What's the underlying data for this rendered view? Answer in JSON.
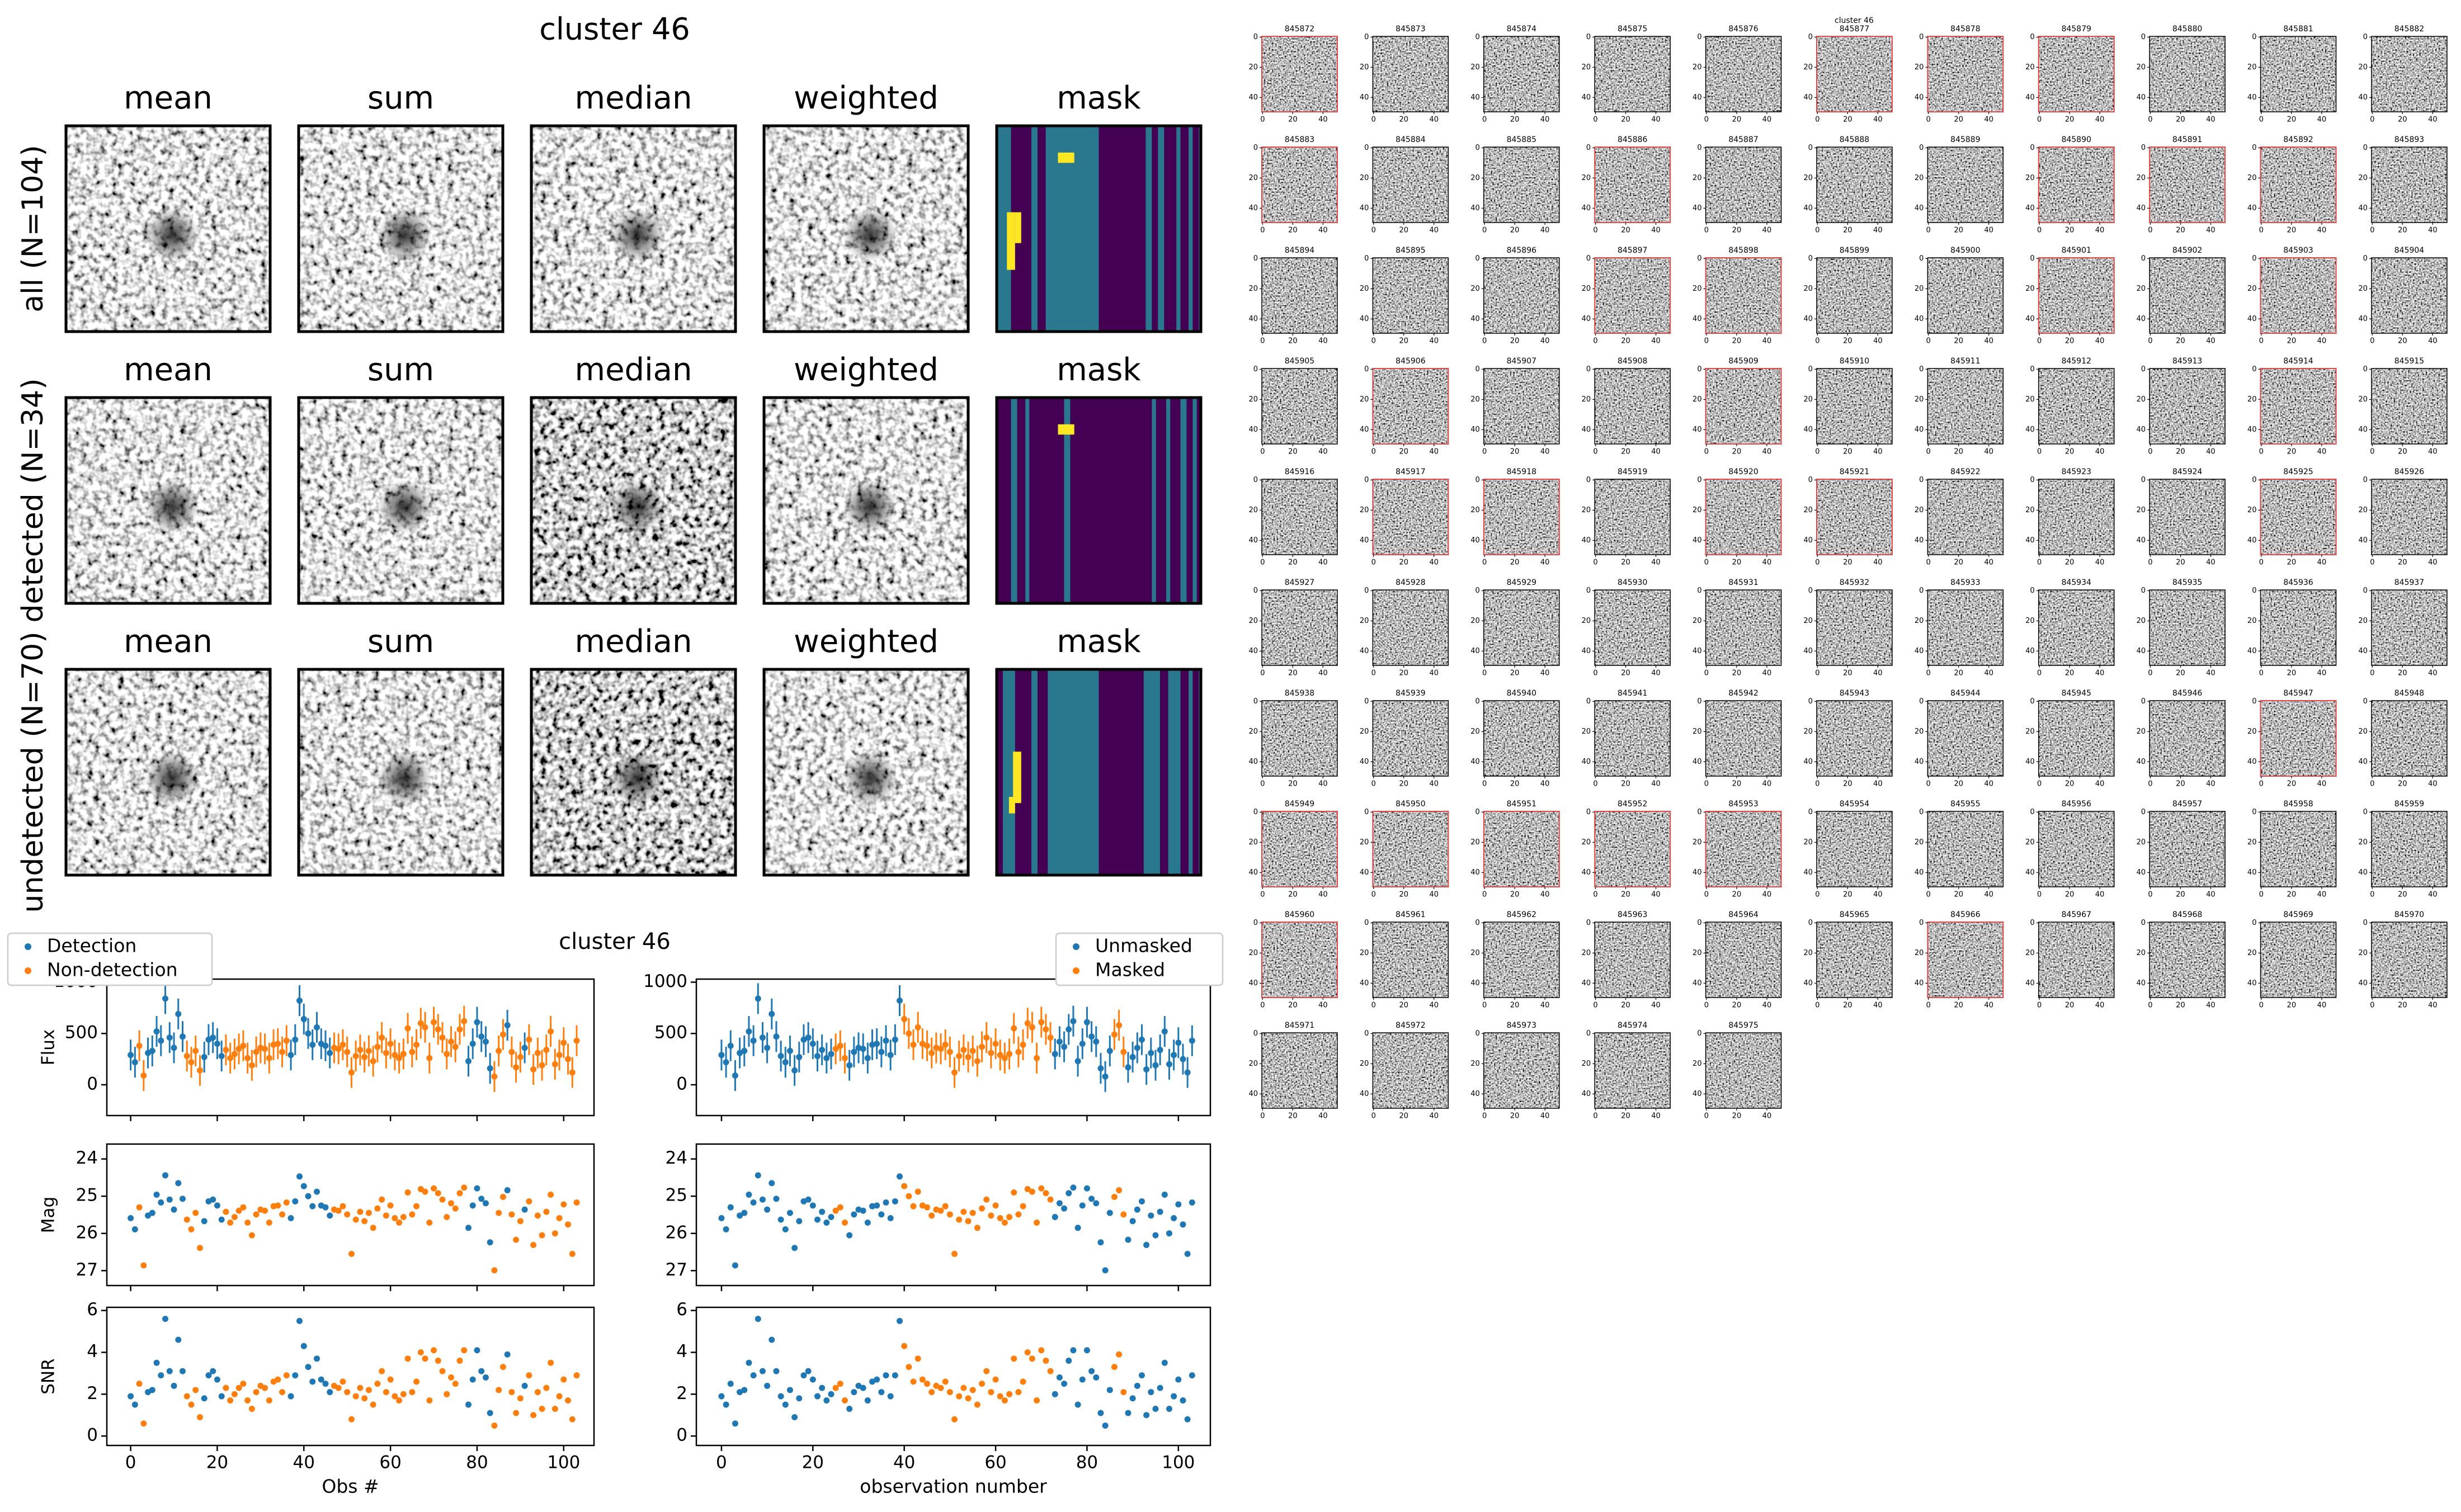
{
  "stacks": {
    "title": "cluster 46",
    "columns": [
      "mean",
      "sum",
      "median",
      "weighted",
      "mask"
    ],
    "rows": [
      "all (N=104)",
      "detected (N=34)",
      "undetected (N=70)"
    ]
  },
  "chart_data": {
    "type": "scatter",
    "title": "cluster 46",
    "x": [
      0,
      1,
      2,
      3,
      4,
      5,
      6,
      7,
      8,
      9,
      10,
      11,
      12,
      13,
      14,
      15,
      16,
      17,
      18,
      19,
      20,
      21,
      22,
      23,
      24,
      25,
      26,
      27,
      28,
      29,
      30,
      31,
      32,
      33,
      34,
      35,
      36,
      37,
      38,
      39,
      40,
      41,
      42,
      43,
      44,
      45,
      46,
      47,
      48,
      49,
      50,
      51,
      52,
      53,
      54,
      55,
      56,
      57,
      58,
      59,
      60,
      61,
      62,
      63,
      64,
      65,
      66,
      67,
      68,
      69,
      70,
      71,
      72,
      73,
      74,
      75,
      76,
      77,
      78,
      79,
      80,
      81,
      82,
      83,
      84,
      85,
      86,
      87,
      88,
      89,
      90,
      91,
      92,
      93,
      94,
      95,
      96,
      97,
      98,
      99,
      100,
      101,
      102,
      103
    ],
    "xlim": [
      -5.5,
      107
    ],
    "xticks": [
      0,
      20,
      40,
      60,
      80,
      100
    ],
    "panels": [
      {
        "ylabel": "Flux",
        "ylim": [
          -300,
          1030
        ],
        "yticks": [
          0,
          500,
          1000
        ],
        "values": [
          290,
          220,
          380,
          90,
          310,
          330,
          520,
          430,
          840,
          460,
          360,
          690,
          470,
          280,
          220,
          330,
          140,
          270,
          440,
          460,
          400,
          280,
          340,
          260,
          300,
          350,
          380,
          260,
          190,
          320,
          360,
          350,
          260,
          390,
          400,
          320,
          430,
          290,
          440,
          820,
          640,
          500,
          390,
          560,
          400,
          380,
          310,
          360,
          350,
          390,
          320,
          120,
          280,
          340,
          270,
          330,
          230,
          370,
          460,
          310,
          400,
          290,
          260,
          300,
          550,
          320,
          390,
          600,
          560,
          260,
          610,
          540,
          460,
          300,
          420,
          370,
          540,
          620,
          230,
          400,
          610,
          470,
          420,
          160,
          80,
          330,
          490,
          580,
          320,
          170,
          270,
          360,
          440,
          150,
          310,
          190,
          340,
          520,
          200,
          290,
          410,
          250,
          120,
          430
        ],
        "errors": [
          150,
          150,
          150,
          150,
          150,
          150,
          150,
          150,
          150,
          150,
          150,
          150,
          150,
          150,
          150,
          150,
          150,
          150,
          150,
          150,
          150,
          150,
          150,
          150,
          150,
          150,
          150,
          150,
          150,
          150,
          150,
          150,
          150,
          150,
          150,
          150,
          150,
          150,
          150,
          150,
          150,
          150,
          150,
          150,
          150,
          150,
          150,
          150,
          150,
          150,
          150,
          150,
          150,
          150,
          150,
          150,
          150,
          150,
          150,
          150,
          150,
          150,
          150,
          150,
          150,
          150,
          150,
          150,
          150,
          150,
          150,
          150,
          150,
          150,
          150,
          150,
          150,
          150,
          150,
          150,
          150,
          150,
          150,
          150,
          150,
          150,
          150,
          150,
          150,
          150,
          150,
          150,
          150,
          150,
          150,
          150,
          150,
          150,
          150,
          150,
          150,
          150,
          150,
          150
        ]
      },
      {
        "ylabel": "Mag",
        "ylim": [
          27.4,
          23.6
        ],
        "yticks": [
          24,
          25,
          26,
          27
        ],
        "values": [
          25.59,
          25.89,
          25.3,
          26.86,
          25.52,
          25.45,
          24.96,
          25.17,
          24.44,
          25.09,
          25.36,
          24.65,
          25.07,
          25.63,
          25.89,
          25.45,
          26.39,
          25.67,
          25.14,
          25.09,
          25.25,
          25.63,
          25.42,
          25.71,
          25.56,
          25.39,
          25.3,
          25.71,
          26.05,
          25.49,
          25.36,
          25.39,
          25.71,
          25.27,
          25.25,
          25.49,
          25.17,
          25.59,
          25.14,
          24.47,
          24.73,
          25.0,
          25.27,
          24.88,
          25.25,
          25.3,
          25.52,
          25.36,
          25.39,
          25.27,
          25.49,
          26.55,
          25.63,
          25.42,
          25.67,
          25.45,
          25.85,
          25.33,
          25.09,
          25.52,
          25.25,
          25.59,
          25.71,
          25.56,
          24.9,
          25.49,
          25.27,
          24.81,
          24.88,
          25.71,
          24.79,
          24.92,
          25.09,
          25.56,
          25.19,
          25.33,
          24.92,
          24.77,
          25.85,
          25.25,
          24.79,
          25.07,
          25.19,
          26.24,
          26.99,
          25.45,
          25.02,
          24.84,
          25.49,
          26.17,
          25.67,
          25.36,
          25.14,
          26.31,
          25.52,
          26.05,
          25.42,
          24.96,
          26.0,
          25.59,
          25.22,
          25.76,
          26.55,
          25.17
        ]
      },
      {
        "ylabel": "SNR",
        "ylim": [
          -0.45,
          6.15
        ],
        "yticks": [
          0,
          2,
          4,
          6
        ],
        "values": [
          1.9,
          1.5,
          2.5,
          0.6,
          2.1,
          2.2,
          3.5,
          2.9,
          5.6,
          3.1,
          2.4,
          4.6,
          3.1,
          1.9,
          1.5,
          2.2,
          0.9,
          1.8,
          2.9,
          3.1,
          2.7,
          1.9,
          2.3,
          1.7,
          2.0,
          2.3,
          2.5,
          1.7,
          1.3,
          2.1,
          2.4,
          2.3,
          1.7,
          2.6,
          2.7,
          2.1,
          2.9,
          1.9,
          2.9,
          5.5,
          4.3,
          3.3,
          2.6,
          3.7,
          2.7,
          2.5,
          2.1,
          2.4,
          2.3,
          2.6,
          2.1,
          0.8,
          1.9,
          2.3,
          1.8,
          2.2,
          1.5,
          2.5,
          3.1,
          2.1,
          2.7,
          1.9,
          1.7,
          2.0,
          3.7,
          2.1,
          2.6,
          4.0,
          3.7,
          1.7,
          4.1,
          3.6,
          3.1,
          2.0,
          2.8,
          2.5,
          3.6,
          4.1,
          1.5,
          2.7,
          4.1,
          3.1,
          2.8,
          1.1,
          0.5,
          2.2,
          3.3,
          3.9,
          2.1,
          1.1,
          1.8,
          2.4,
          2.9,
          1.0,
          2.1,
          1.3,
          2.3,
          3.5,
          1.3,
          1.9,
          2.7,
          1.7,
          0.8,
          2.9
        ]
      }
    ],
    "columns": [
      {
        "xlabel": "Obs #",
        "legend_loc": "upper left",
        "legend": [
          {
            "name": "Detection",
            "color": "#1f77b4"
          },
          {
            "name": "Non-detection",
            "color": "#ff7f0e"
          }
        ],
        "highlight": [
          true,
          true,
          false,
          false,
          true,
          true,
          true,
          true,
          true,
          true,
          true,
          true,
          true,
          false,
          false,
          false,
          false,
          true,
          true,
          true,
          true,
          true,
          false,
          false,
          false,
          false,
          false,
          false,
          false,
          false,
          false,
          false,
          false,
          false,
          false,
          false,
          false,
          true,
          true,
          true,
          true,
          true,
          true,
          true,
          true,
          true,
          true,
          false,
          false,
          false,
          false,
          false,
          false,
          false,
          false,
          false,
          false,
          false,
          false,
          false,
          false,
          false,
          false,
          false,
          false,
          false,
          false,
          false,
          false,
          false,
          false,
          false,
          false,
          false,
          false,
          false,
          false,
          false,
          true,
          true,
          true,
          true,
          true,
          true,
          false,
          false,
          false,
          true,
          false,
          false,
          false,
          true,
          false,
          false,
          false,
          false,
          false,
          false,
          false,
          false,
          false,
          false,
          false,
          false
        ]
      },
      {
        "xlabel": "observation number",
        "legend_loc": "upper right",
        "legend": [
          {
            "name": "Unmasked",
            "color": "#1f77b4"
          },
          {
            "name": "Masked",
            "color": "#ff7f0e"
          }
        ],
        "highlight": [
          true,
          true,
          true,
          true,
          true,
          true,
          true,
          true,
          true,
          true,
          true,
          true,
          true,
          true,
          true,
          true,
          true,
          true,
          true,
          true,
          true,
          true,
          true,
          true,
          true,
          false,
          false,
          false,
          true,
          true,
          true,
          true,
          true,
          true,
          true,
          true,
          true,
          true,
          true,
          true,
          false,
          false,
          false,
          false,
          false,
          false,
          false,
          false,
          false,
          false,
          false,
          false,
          false,
          false,
          false,
          false,
          false,
          false,
          false,
          false,
          false,
          false,
          false,
          false,
          false,
          false,
          false,
          false,
          false,
          false,
          false,
          false,
          false,
          true,
          true,
          true,
          true,
          true,
          true,
          true,
          true,
          true,
          true,
          true,
          true,
          true,
          false,
          false,
          false,
          true,
          true,
          true,
          true,
          true,
          true,
          true,
          true,
          true,
          true,
          true,
          true,
          true,
          true,
          true
        ]
      }
    ]
  },
  "thumbnails": {
    "title": "cluster 46",
    "ticks": [
      0,
      20,
      40
    ],
    "ids": [
      "845872",
      "845873",
      "845874",
      "845875",
      "845876",
      "845877",
      "845878",
      "845879",
      "845880",
      "845881",
      "845882",
      "845883",
      "845884",
      "845885",
      "845886",
      "845887",
      "845888",
      "845889",
      "845890",
      "845891",
      "845892",
      "845893",
      "845894",
      "845895",
      "845896",
      "845897",
      "845898",
      "845899",
      "845900",
      "845901",
      "845902",
      "845903",
      "845904",
      "845905",
      "845906",
      "845907",
      "845908",
      "845909",
      "845910",
      "845911",
      "845912",
      "845913",
      "845914",
      "845915",
      "845916",
      "845917",
      "845918",
      "845919",
      "845920",
      "845921",
      "845922",
      "845923",
      "845924",
      "845925",
      "845926",
      "845927",
      "845928",
      "845929",
      "845930",
      "845931",
      "845932",
      "845933",
      "845934",
      "845935",
      "845936",
      "845937",
      "845938",
      "845939",
      "845940",
      "845941",
      "845942",
      "845943",
      "845944",
      "845945",
      "845946",
      "845947",
      "845948",
      "845949",
      "845950",
      "845951",
      "845952",
      "845953",
      "845954",
      "845955",
      "845956",
      "845957",
      "845958",
      "845959",
      "845960",
      "845961",
      "845962",
      "845963",
      "845964",
      "845965",
      "845966",
      "845967",
      "845968",
      "845969",
      "845970",
      "845971",
      "845972",
      "845973",
      "845974",
      "845975"
    ],
    "flagged": [
      true,
      false,
      false,
      false,
      false,
      true,
      true,
      true,
      false,
      false,
      false,
      true,
      false,
      false,
      true,
      false,
      false,
      false,
      true,
      true,
      true,
      false,
      false,
      false,
      false,
      true,
      true,
      false,
      false,
      true,
      false,
      true,
      false,
      false,
      true,
      false,
      false,
      true,
      false,
      false,
      false,
      false,
      true,
      false,
      false,
      true,
      true,
      false,
      true,
      true,
      false,
      false,
      false,
      true,
      false,
      false,
      false,
      false,
      false,
      false,
      false,
      false,
      false,
      false,
      false,
      false,
      false,
      false,
      false,
      false,
      false,
      false,
      false,
      false,
      false,
      true,
      false,
      true,
      true,
      true,
      true,
      true,
      false,
      false,
      false,
      false,
      false,
      false,
      true,
      false,
      false,
      false,
      false,
      false,
      true,
      false,
      false,
      false,
      false,
      false,
      false,
      false,
      false,
      false
    ]
  }
}
